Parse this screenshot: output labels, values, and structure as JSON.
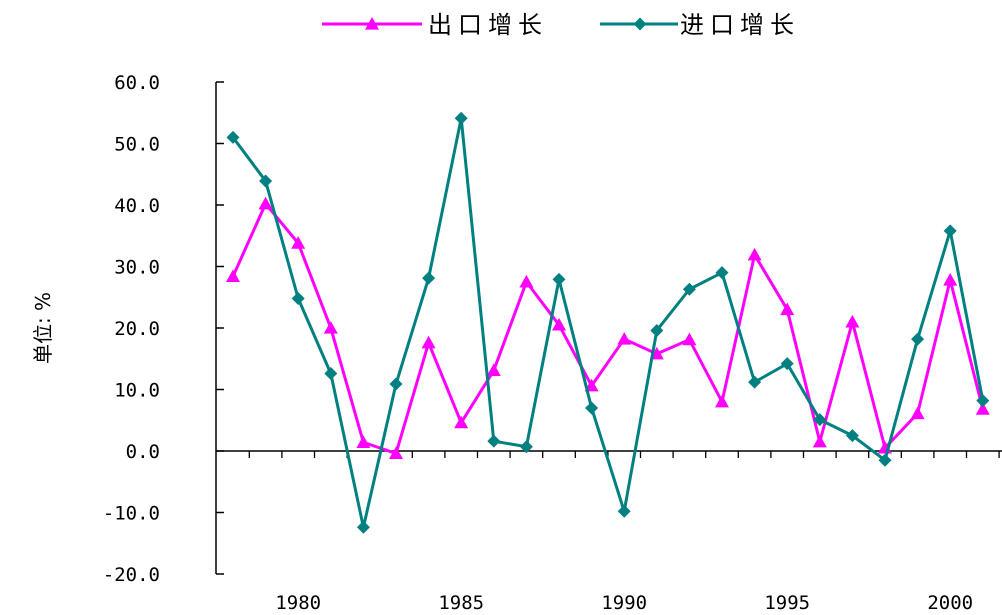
{
  "chart_data": {
    "type": "line",
    "title": "",
    "xlabel": "",
    "ylabel": "单位: %",
    "x": [
      1978,
      1979,
      1980,
      1981,
      1982,
      1983,
      1984,
      1985,
      1986,
      1987,
      1988,
      1989,
      1990,
      1991,
      1992,
      1993,
      1994,
      1995,
      1996,
      1997,
      1998,
      1999,
      2000,
      2001
    ],
    "xlim": [
      1978,
      2001
    ],
    "ylim": [
      -20,
      60
    ],
    "x_tick_labels": [
      "1980",
      "1985",
      "1990",
      "1995",
      "2000"
    ],
    "y_tick_labels": [
      "60.0",
      "50.0",
      "40.0",
      "30.0",
      "20.0",
      "10.0",
      "0.0",
      "-10.0",
      "-20.0"
    ],
    "legend_position": "top",
    "grid": false,
    "series": [
      {
        "name": "出口增长",
        "color": "#ff00ff",
        "marker": "triangle",
        "values": [
          28.4,
          40.2,
          33.8,
          20.0,
          1.4,
          -0.4,
          17.6,
          4.6,
          13.1,
          27.5,
          20.5,
          10.6,
          18.2,
          15.8,
          18.1,
          8.0,
          31.9,
          23.0,
          1.5,
          21.0,
          0.5,
          6.1,
          27.8,
          6.8
        ]
      },
      {
        "name": "进口增长",
        "color": "#008080",
        "marker": "diamond",
        "values": [
          51.0,
          43.9,
          24.8,
          12.6,
          -12.4,
          10.9,
          28.1,
          54.1,
          1.6,
          0.7,
          27.9,
          7.0,
          -9.8,
          19.6,
          26.3,
          29.0,
          11.2,
          14.2,
          5.1,
          2.5,
          -1.5,
          18.2,
          35.8,
          8.2
        ]
      }
    ]
  }
}
